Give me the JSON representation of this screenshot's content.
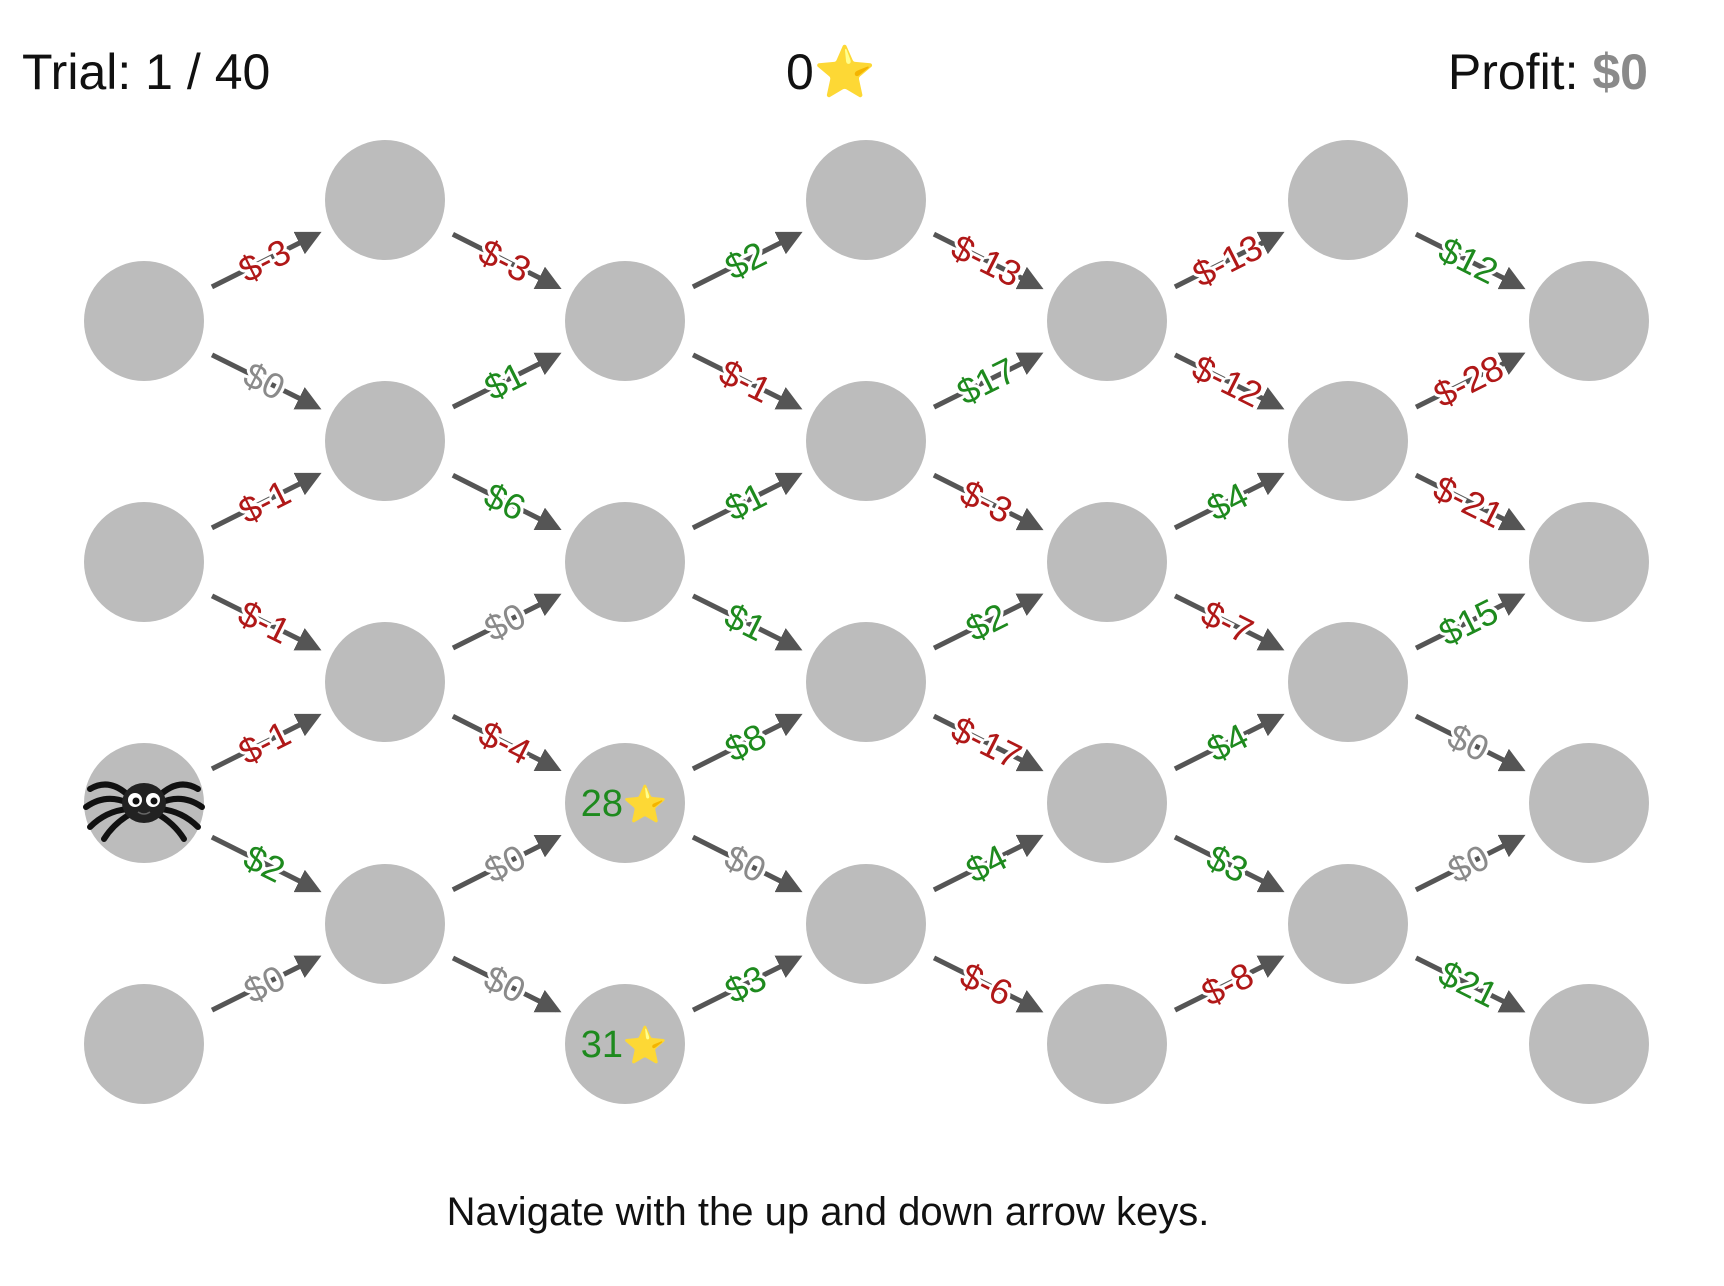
{
  "hud": {
    "trial_label": "Trial:",
    "trial_current": "1",
    "trial_separator": "/",
    "trial_total": "40",
    "stars_count": "0",
    "star_icon": "⭐",
    "profit_label": "Profit:",
    "profit_value": "$0",
    "profit_value_color": "#8a8a8a"
  },
  "instruction": "Navigate with the up and down arrow keys.",
  "colors": {
    "node": "#bcbcbc",
    "arrow": "#555555",
    "positive": "#1e8a1e",
    "negative": "#b01818",
    "zero": "#8a8a8a"
  },
  "player": {
    "icon": "spider-icon",
    "column": 0,
    "row": 5
  },
  "nodes": [
    {
      "column": 0,
      "row": 1
    },
    {
      "column": 0,
      "row": 3
    },
    {
      "column": 0,
      "row": 5
    },
    {
      "column": 0,
      "row": 7
    },
    {
      "column": 1,
      "row": 0
    },
    {
      "column": 1,
      "row": 2
    },
    {
      "column": 1,
      "row": 4
    },
    {
      "column": 1,
      "row": 6
    },
    {
      "column": 2,
      "row": 1
    },
    {
      "column": 2,
      "row": 3
    },
    {
      "column": 2,
      "row": 5,
      "reward": "28"
    },
    {
      "column": 2,
      "row": 7,
      "reward": "31"
    },
    {
      "column": 3,
      "row": 0
    },
    {
      "column": 3,
      "row": 2
    },
    {
      "column": 3,
      "row": 4
    },
    {
      "column": 3,
      "row": 6
    },
    {
      "column": 4,
      "row": 1
    },
    {
      "column": 4,
      "row": 3
    },
    {
      "column": 4,
      "row": 5
    },
    {
      "column": 4,
      "row": 7
    },
    {
      "column": 5,
      "row": 0
    },
    {
      "column": 5,
      "row": 2
    },
    {
      "column": 5,
      "row": 4
    },
    {
      "column": 5,
      "row": 6
    },
    {
      "column": 6,
      "row": 1
    },
    {
      "column": 6,
      "row": 3
    },
    {
      "column": 6,
      "row": 5
    },
    {
      "column": 6,
      "row": 7
    }
  ],
  "edges": [
    {
      "from": [
        0,
        1
      ],
      "to": [
        1,
        0
      ],
      "label": "$-3"
    },
    {
      "from": [
        0,
        1
      ],
      "to": [
        1,
        2
      ],
      "label": "$0"
    },
    {
      "from": [
        0,
        3
      ],
      "to": [
        1,
        2
      ],
      "label": "$-1"
    },
    {
      "from": [
        0,
        3
      ],
      "to": [
        1,
        4
      ],
      "label": "$-1"
    },
    {
      "from": [
        0,
        5
      ],
      "to": [
        1,
        4
      ],
      "label": "$-1"
    },
    {
      "from": [
        0,
        5
      ],
      "to": [
        1,
        6
      ],
      "label": "$2"
    },
    {
      "from": [
        0,
        7
      ],
      "to": [
        1,
        6
      ],
      "label": "$0"
    },
    {
      "from": [
        1,
        0
      ],
      "to": [
        2,
        1
      ],
      "label": "$-3"
    },
    {
      "from": [
        1,
        2
      ],
      "to": [
        2,
        1
      ],
      "label": "$1"
    },
    {
      "from": [
        1,
        2
      ],
      "to": [
        2,
        3
      ],
      "label": "$6"
    },
    {
      "from": [
        1,
        4
      ],
      "to": [
        2,
        3
      ],
      "label": "$0"
    },
    {
      "from": [
        1,
        4
      ],
      "to": [
        2,
        5
      ],
      "label": "$-4"
    },
    {
      "from": [
        1,
        6
      ],
      "to": [
        2,
        5
      ],
      "label": "$0"
    },
    {
      "from": [
        1,
        6
      ],
      "to": [
        2,
        7
      ],
      "label": "$0"
    },
    {
      "from": [
        2,
        1
      ],
      "to": [
        3,
        0
      ],
      "label": "$2"
    },
    {
      "from": [
        2,
        1
      ],
      "to": [
        3,
        2
      ],
      "label": "$-1"
    },
    {
      "from": [
        2,
        3
      ],
      "to": [
        3,
        2
      ],
      "label": "$1"
    },
    {
      "from": [
        2,
        3
      ],
      "to": [
        3,
        4
      ],
      "label": "$1"
    },
    {
      "from": [
        2,
        5
      ],
      "to": [
        3,
        4
      ],
      "label": "$8"
    },
    {
      "from": [
        2,
        5
      ],
      "to": [
        3,
        6
      ],
      "label": "$0"
    },
    {
      "from": [
        2,
        7
      ],
      "to": [
        3,
        6
      ],
      "label": "$3"
    },
    {
      "from": [
        3,
        0
      ],
      "to": [
        4,
        1
      ],
      "label": "$-13"
    },
    {
      "from": [
        3,
        2
      ],
      "to": [
        4,
        1
      ],
      "label": "$17"
    },
    {
      "from": [
        3,
        2
      ],
      "to": [
        4,
        3
      ],
      "label": "$-3"
    },
    {
      "from": [
        3,
        4
      ],
      "to": [
        4,
        3
      ],
      "label": "$2"
    },
    {
      "from": [
        3,
        4
      ],
      "to": [
        4,
        5
      ],
      "label": "$-17"
    },
    {
      "from": [
        3,
        6
      ],
      "to": [
        4,
        5
      ],
      "label": "$4"
    },
    {
      "from": [
        3,
        6
      ],
      "to": [
        4,
        7
      ],
      "label": "$-6"
    },
    {
      "from": [
        4,
        1
      ],
      "to": [
        5,
        0
      ],
      "label": "$-13"
    },
    {
      "from": [
        4,
        1
      ],
      "to": [
        5,
        2
      ],
      "label": "$-12"
    },
    {
      "from": [
        4,
        3
      ],
      "to": [
        5,
        2
      ],
      "label": "$4"
    },
    {
      "from": [
        4,
        3
      ],
      "to": [
        5,
        4
      ],
      "label": "$-7"
    },
    {
      "from": [
        4,
        5
      ],
      "to": [
        5,
        4
      ],
      "label": "$4"
    },
    {
      "from": [
        4,
        5
      ],
      "to": [
        5,
        6
      ],
      "label": "$3"
    },
    {
      "from": [
        4,
        7
      ],
      "to": [
        5,
        6
      ],
      "label": "$-8"
    },
    {
      "from": [
        5,
        0
      ],
      "to": [
        6,
        1
      ],
      "label": "$12"
    },
    {
      "from": [
        5,
        2
      ],
      "to": [
        6,
        1
      ],
      "label": "$-28"
    },
    {
      "from": [
        5,
        2
      ],
      "to": [
        6,
        3
      ],
      "label": "$-21"
    },
    {
      "from": [
        5,
        4
      ],
      "to": [
        6,
        3
      ],
      "label": "$15"
    },
    {
      "from": [
        5,
        4
      ],
      "to": [
        6,
        5
      ],
      "label": "$0"
    },
    {
      "from": [
        5,
        6
      ],
      "to": [
        6,
        5
      ],
      "label": "$0"
    },
    {
      "from": [
        5,
        6
      ],
      "to": [
        6,
        7
      ],
      "label": "$21"
    }
  ]
}
